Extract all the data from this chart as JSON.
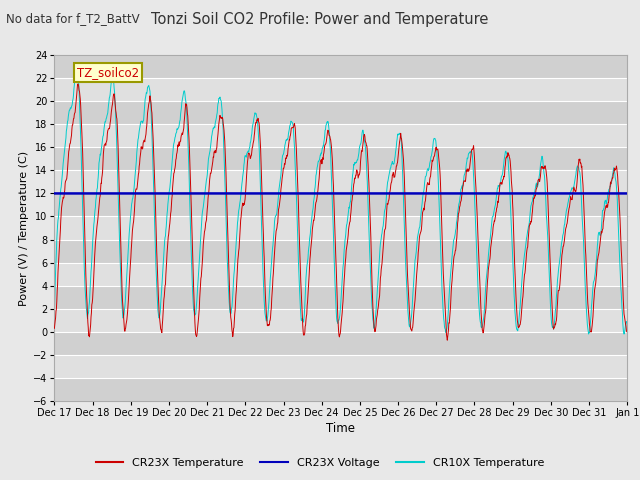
{
  "title": "Tonzi Soil CO2 Profile: Power and Temperature",
  "subtitle": "No data for f_T2_BattV",
  "ylabel": "Power (V) / Temperature (C)",
  "xlabel": "Time",
  "legend_label": "TZ_soilco2",
  "ylim": [
    -6,
    24
  ],
  "yticks": [
    -6,
    -4,
    -2,
    0,
    2,
    4,
    6,
    8,
    10,
    12,
    14,
    16,
    18,
    20,
    22,
    24
  ],
  "cr23x_voltage_level": 12.0,
  "fig_bg_color": "#e8e8e8",
  "plot_bg_color": "#e0e0e0",
  "stripe_color": "#d0d0d0",
  "cr23x_temp_color": "#cc0000",
  "cr23x_voltage_color": "#0000bb",
  "cr10x_temp_color": "#00cccc",
  "x_tick_labels": [
    "Dec 17",
    "Dec 18",
    "Dec 19",
    "Dec 20",
    "Dec 21",
    "Dec 22",
    "Dec 23",
    "Dec 24",
    "Dec 25",
    "Dec 26",
    "Dec 27",
    "Dec 28",
    "Dec 29",
    "Dec 30",
    "Dec 31",
    "Jan 1"
  ],
  "n_points": 1440,
  "grid_color": "#ffffff",
  "legend_items": [
    "CR23X Temperature",
    "CR23X Voltage",
    "CR10X Temperature"
  ]
}
